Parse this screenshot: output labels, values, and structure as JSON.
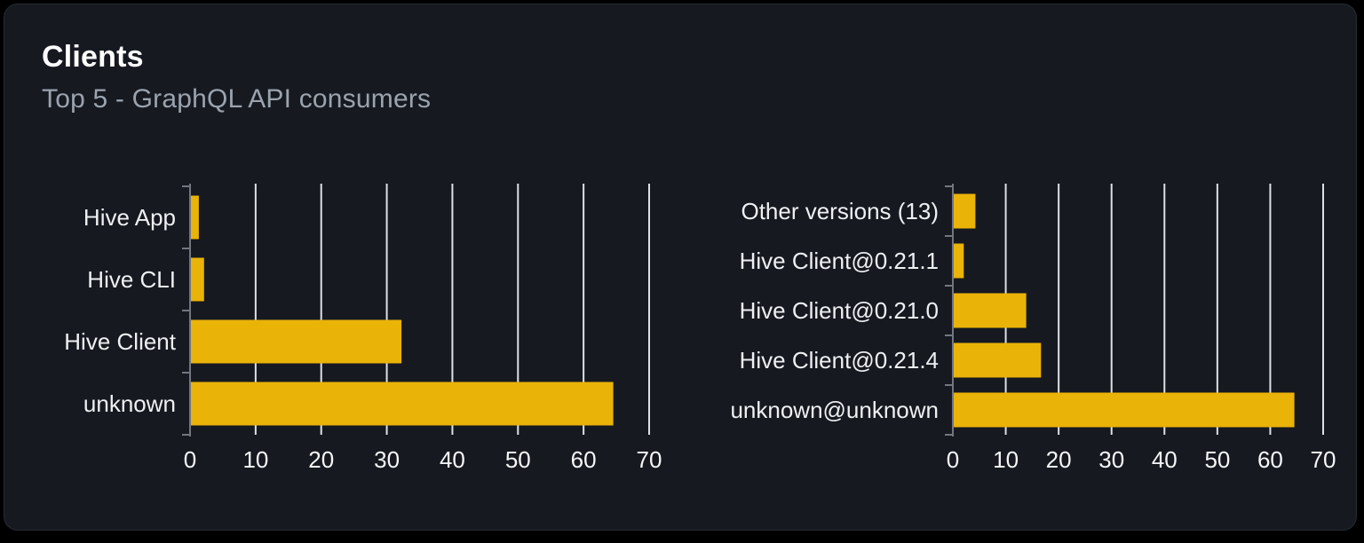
{
  "card": {
    "title": "Clients",
    "subtitle": "Top 5 - GraphQL API consumers"
  },
  "colors": {
    "page_bg": "#000000",
    "card_bg": "#161920",
    "card_border": "#262a32",
    "bar": "#eab308",
    "gridline": "#dde0e6",
    "axis": "#72767f",
    "category_label": "#eef0f2",
    "tick_label": "#f5f6f7",
    "title": "#ffffff",
    "subtitle": "#9ba3ae"
  },
  "chart_data": [
    {
      "id": "clients-top5",
      "type": "bar",
      "orientation": "horizontal",
      "title": "",
      "categories": [
        "Hive App",
        "Hive CLI",
        "Hive Client",
        "unknown"
      ],
      "values": [
        1.2,
        2.0,
        32.1,
        64.4
      ],
      "xlabel": "",
      "ylabel": "",
      "xlim": [
        0,
        70
      ],
      "xticks": [
        0,
        10,
        20,
        30,
        40,
        50,
        60,
        70
      ],
      "grid": true,
      "legend": false
    },
    {
      "id": "client-versions-top5",
      "type": "bar",
      "orientation": "horizontal",
      "title": "",
      "categories": [
        "Other versions (13)",
        "Hive Client@0.21.1",
        "Hive Client@0.21.0",
        "Hive Client@0.21.4",
        "unknown@unknown"
      ],
      "values": [
        4.1,
        1.9,
        13.7,
        16.5,
        64.4
      ],
      "xlabel": "",
      "ylabel": "",
      "xlim": [
        0,
        70
      ],
      "xticks": [
        0,
        10,
        20,
        30,
        40,
        50,
        60,
        70
      ],
      "grid": true,
      "legend": false
    }
  ]
}
